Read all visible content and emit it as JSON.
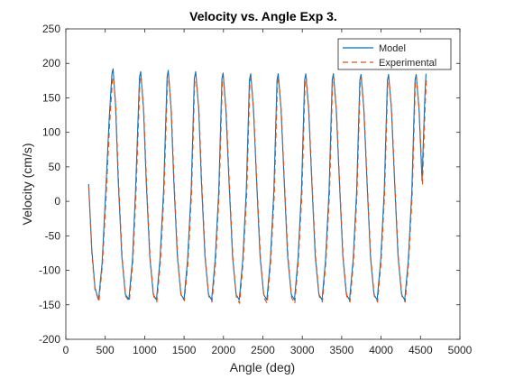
{
  "chart_data": {
    "type": "line",
    "title": "Velocity vs. Angle Exp 3.",
    "xlabel": "Angle (deg)",
    "ylabel": "Velocity (cm/s)",
    "xlim": [
      0,
      5000
    ],
    "ylim": [
      -200,
      250
    ],
    "xticks": [
      0,
      500,
      1000,
      1500,
      2000,
      2500,
      3000,
      3500,
      4000,
      4500,
      5000
    ],
    "yticks": [
      -200,
      -150,
      -100,
      -50,
      0,
      50,
      100,
      150,
      200,
      250
    ],
    "grid": false,
    "legend_position": "top-right",
    "series": [
      {
        "name": "Model",
        "color": "#0072BD",
        "style": "solid",
        "x": [
          290,
          330,
          370,
          415,
          460,
          505,
          550,
          585,
          600,
          630,
          665,
          710,
          755,
          800,
          845,
          885,
          935,
          950,
          985,
          1020,
          1065,
          1110,
          1150,
          1195,
          1240,
          1285,
          1300,
          1335,
          1370,
          1415,
          1460,
          1500,
          1545,
          1590,
          1630,
          1648,
          1685,
          1720,
          1765,
          1810,
          1850,
          1895,
          1940,
          1980,
          1995,
          2030,
          2070,
          2115,
          2160,
          2200,
          2245,
          2290,
          2330,
          2345,
          2380,
          2420,
          2465,
          2510,
          2550,
          2595,
          2640,
          2680,
          2695,
          2730,
          2770,
          2815,
          2860,
          2900,
          2945,
          2990,
          3030,
          3045,
          3080,
          3120,
          3165,
          3210,
          3250,
          3295,
          3340,
          3380,
          3395,
          3430,
          3470,
          3515,
          3560,
          3600,
          3645,
          3690,
          3730,
          3745,
          3780,
          3820,
          3865,
          3910,
          3950,
          3995,
          4040,
          4080,
          4095,
          4130,
          4170,
          4215,
          4260,
          4300,
          4345,
          4390,
          4430,
          4445,
          4480,
          4520,
          4555,
          4570
        ],
        "y": [
          25,
          -70,
          -125,
          -143,
          -90,
          10,
          120,
          185,
          192,
          140,
          30,
          -80,
          -135,
          -142,
          -85,
          15,
          180,
          188,
          135,
          30,
          -80,
          -135,
          -143,
          -85,
          15,
          180,
          190,
          135,
          30,
          -80,
          -135,
          -142,
          -85,
          15,
          178,
          188,
          135,
          30,
          -80,
          -135,
          -143,
          -85,
          15,
          178,
          186,
          135,
          30,
          -80,
          -135,
          -143,
          -85,
          15,
          176,
          185,
          135,
          30,
          -80,
          -135,
          -143,
          -85,
          15,
          176,
          185,
          135,
          30,
          -80,
          -135,
          -143,
          -85,
          15,
          176,
          185,
          135,
          30,
          -80,
          -135,
          -143,
          -85,
          15,
          176,
          185,
          135,
          30,
          -80,
          -135,
          -143,
          -85,
          15,
          175,
          184,
          135,
          30,
          -80,
          -135,
          -143,
          -85,
          15,
          175,
          184,
          135,
          30,
          -80,
          -135,
          -143,
          -85,
          15,
          175,
          184,
          135,
          30,
          150,
          185
        ]
      },
      {
        "name": "Experimental",
        "color": "#D95319",
        "style": "dashed",
        "x": [
          290,
          330,
          370,
          420,
          465,
          510,
          555,
          590,
          605,
          635,
          670,
          715,
          760,
          805,
          850,
          890,
          940,
          955,
          990,
          1025,
          1070,
          1115,
          1155,
          1200,
          1245,
          1290,
          1305,
          1340,
          1375,
          1420,
          1465,
          1505,
          1550,
          1595,
          1635,
          1653,
          1690,
          1725,
          1770,
          1815,
          1855,
          1900,
          1945,
          1985,
          2000,
          2035,
          2075,
          2120,
          2165,
          2205,
          2250,
          2295,
          2335,
          2350,
          2385,
          2425,
          2470,
          2515,
          2555,
          2600,
          2645,
          2685,
          2700,
          2735,
          2775,
          2820,
          2865,
          2905,
          2950,
          2995,
          3035,
          3050,
          3085,
          3125,
          3170,
          3215,
          3255,
          3300,
          3345,
          3385,
          3400,
          3435,
          3475,
          3520,
          3565,
          3605,
          3650,
          3695,
          3735,
          3750,
          3785,
          3825,
          3870,
          3915,
          3955,
          4000,
          4045,
          4085,
          4100,
          4135,
          4175,
          4220,
          4265,
          4305,
          4350,
          4395,
          4435,
          4450,
          4485,
          4525,
          4560,
          4575
        ],
        "y": [
          22,
          -75,
          -128,
          -145,
          -92,
          5,
          110,
          175,
          180,
          135,
          25,
          -82,
          -138,
          -145,
          -88,
          10,
          175,
          182,
          130,
          25,
          -82,
          -138,
          -146,
          -88,
          10,
          172,
          182,
          130,
          25,
          -82,
          -138,
          -144,
          -88,
          10,
          172,
          180,
          130,
          25,
          -82,
          -138,
          -146,
          -88,
          10,
          172,
          180,
          130,
          25,
          -82,
          -140,
          -148,
          -88,
          10,
          172,
          180,
          130,
          25,
          -82,
          -140,
          -148,
          -88,
          10,
          172,
          180,
          130,
          25,
          -82,
          -140,
          -148,
          -88,
          10,
          172,
          180,
          130,
          25,
          -82,
          -138,
          -146,
          -88,
          10,
          172,
          180,
          130,
          25,
          -82,
          -138,
          -146,
          -88,
          10,
          172,
          180,
          130,
          25,
          -82,
          -138,
          -146,
          -88,
          10,
          172,
          180,
          130,
          25,
          -82,
          -138,
          -146,
          -88,
          10,
          172,
          180,
          130,
          25,
          140,
          178
        ]
      }
    ]
  }
}
